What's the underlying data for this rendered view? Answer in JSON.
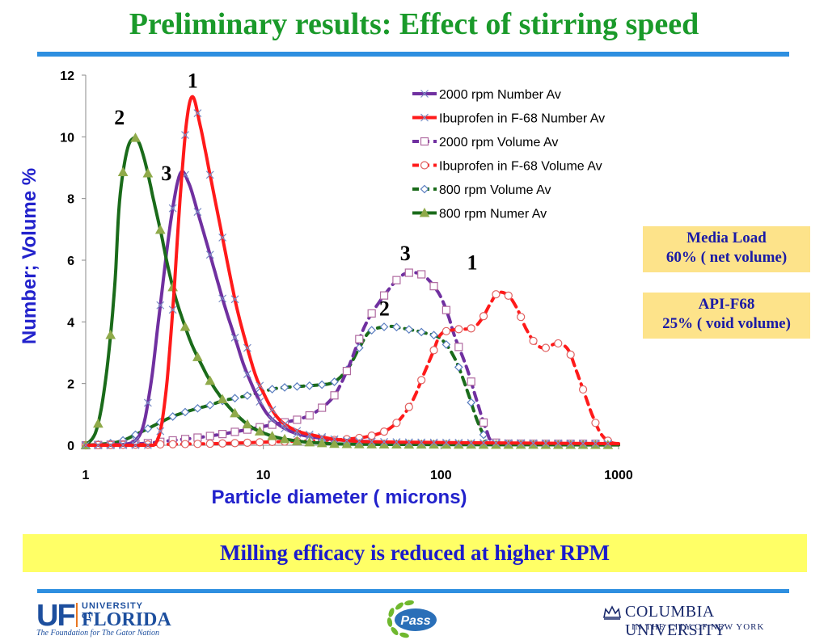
{
  "title": "Preliminary results: Effect of stirring speed",
  "colors": {
    "title": "#1a9a2a",
    "accent_rule": "#2e8fe0",
    "axis_label": "#2222cc",
    "box_fill": "#fde38a",
    "box_text": "#1a1aa6",
    "banner_fill": "#ffff66",
    "banner_text": "#1a1acc"
  },
  "chart_data": {
    "type": "line",
    "xlabel": "Particle diameter ( microns)",
    "ylabel": "Number; Volume %",
    "x_scale": "log",
    "xlim": [
      1,
      1000
    ],
    "ylim": [
      0,
      12
    ],
    "x_ticks": [
      1,
      10,
      100,
      1000
    ],
    "x_tick_labels": [
      "1",
      "10",
      "100",
      "1000"
    ],
    "y_ticks": [
      0,
      2,
      4,
      6,
      8,
      10,
      12
    ],
    "y_tick_labels": [
      "0",
      "2",
      "4",
      "6",
      "8",
      "10",
      "12"
    ],
    "legend_position": "top-right",
    "series": [
      {
        "name": "2000 rpm Number Av",
        "color": "#7030a0",
        "marker": "x",
        "dash": "solid",
        "points": [
          [
            1,
            0
          ],
          [
            1.5,
            0
          ],
          [
            2,
            0.3
          ],
          [
            2.3,
            1.8
          ],
          [
            2.6,
            4.3
          ],
          [
            3,
            7.2
          ],
          [
            3.4,
            8.8
          ],
          [
            3.8,
            8.5
          ],
          [
            4.3,
            7.5
          ],
          [
            5,
            6.2
          ],
          [
            6,
            4.6
          ],
          [
            7,
            3.4
          ],
          [
            8,
            2.4
          ],
          [
            10,
            1.2
          ],
          [
            12,
            0.7
          ],
          [
            15,
            0.4
          ],
          [
            20,
            0.25
          ],
          [
            30,
            0.15
          ],
          [
            50,
            0.1
          ],
          [
            100,
            0.05
          ],
          [
            1000,
            0.02
          ]
        ]
      },
      {
        "name": "Ibuprofen in F-68 Number Av",
        "color": "#ff1a1a",
        "marker": "x",
        "dash": "solid",
        "points": [
          [
            1,
            0
          ],
          [
            2,
            0
          ],
          [
            2.5,
            0.1
          ],
          [
            2.8,
            1.5
          ],
          [
            3.1,
            4.5
          ],
          [
            3.4,
            8
          ],
          [
            3.7,
            10.5
          ],
          [
            4,
            11.3
          ],
          [
            4.4,
            10.4
          ],
          [
            5,
            8.8
          ],
          [
            6,
            6.5
          ],
          [
            7,
            4.6
          ],
          [
            8,
            3.3
          ],
          [
            9,
            2.3
          ],
          [
            10,
            1.7
          ],
          [
            12,
            0.9
          ],
          [
            15,
            0.5
          ],
          [
            20,
            0.3
          ],
          [
            30,
            0.15
          ],
          [
            60,
            0.1
          ],
          [
            1000,
            0.05
          ]
        ]
      },
      {
        "name": "2000 rpm Volume Av",
        "color": "#7030a0",
        "marker": "square",
        "dash": "dash",
        "points": [
          [
            1,
            0
          ],
          [
            2,
            0.05
          ],
          [
            3,
            0.15
          ],
          [
            5,
            0.3
          ],
          [
            8,
            0.5
          ],
          [
            12,
            0.7
          ],
          [
            16,
            0.85
          ],
          [
            20,
            1.1
          ],
          [
            25,
            1.6
          ],
          [
            30,
            2.5
          ],
          [
            35,
            3.5
          ],
          [
            40,
            4.2
          ],
          [
            50,
            5.0
          ],
          [
            60,
            5.5
          ],
          [
            70,
            5.6
          ],
          [
            80,
            5.5
          ],
          [
            90,
            5.2
          ],
          [
            100,
            4.8
          ],
          [
            110,
            4.2
          ],
          [
            120,
            3.5
          ],
          [
            140,
            2.5
          ],
          [
            160,
            1.4
          ],
          [
            180,
            0.5
          ],
          [
            200,
            0.1
          ],
          [
            300,
            0.05
          ],
          [
            1000,
            0.05
          ]
        ]
      },
      {
        "name": "Ibuprofen in F-68 Volume Av",
        "color": "#ff1a1a",
        "marker": "circle",
        "dash": "dash",
        "points": [
          [
            1,
            0
          ],
          [
            5,
            0.05
          ],
          [
            10,
            0.1
          ],
          [
            20,
            0.15
          ],
          [
            30,
            0.2
          ],
          [
            40,
            0.3
          ],
          [
            50,
            0.5
          ],
          [
            60,
            0.9
          ],
          [
            70,
            1.5
          ],
          [
            80,
            2.3
          ],
          [
            90,
            3.0
          ],
          [
            100,
            3.6
          ],
          [
            120,
            3.75
          ],
          [
            150,
            3.8
          ],
          [
            170,
            4.1
          ],
          [
            190,
            4.6
          ],
          [
            210,
            4.95
          ],
          [
            240,
            4.85
          ],
          [
            270,
            4.4
          ],
          [
            300,
            3.8
          ],
          [
            340,
            3.3
          ],
          [
            380,
            3.15
          ],
          [
            420,
            3.25
          ],
          [
            460,
            3.3
          ],
          [
            520,
            3.1
          ],
          [
            580,
            2.4
          ],
          [
            650,
            1.6
          ],
          [
            720,
            0.9
          ],
          [
            800,
            0.35
          ],
          [
            900,
            0.1
          ],
          [
            1000,
            0.05
          ]
        ]
      },
      {
        "name": "800 rpm Volume Av",
        "color": "#1a6b1a",
        "marker": "diamond",
        "dash": "dash",
        "points": [
          [
            1,
            0
          ],
          [
            1.5,
            0.1
          ],
          [
            2,
            0.4
          ],
          [
            3,
            0.9
          ],
          [
            4,
            1.15
          ],
          [
            5,
            1.3
          ],
          [
            6,
            1.45
          ],
          [
            8,
            1.6
          ],
          [
            10,
            1.75
          ],
          [
            12,
            1.85
          ],
          [
            15,
            1.9
          ],
          [
            20,
            1.95
          ],
          [
            25,
            2.05
          ],
          [
            30,
            2.5
          ],
          [
            35,
            3.2
          ],
          [
            40,
            3.7
          ],
          [
            50,
            3.85
          ],
          [
            60,
            3.8
          ],
          [
            80,
            3.65
          ],
          [
            100,
            3.45
          ],
          [
            120,
            2.8
          ],
          [
            140,
            1.8
          ],
          [
            160,
            0.8
          ],
          [
            180,
            0.2
          ],
          [
            200,
            0.05
          ],
          [
            1000,
            0.02
          ]
        ]
      },
      {
        "name": "800 rpm Numer Av",
        "color": "#1a6b1a",
        "marker": "triangle",
        "dash": "solid",
        "points": [
          [
            1,
            0
          ],
          [
            1.15,
            0.5
          ],
          [
            1.3,
            2.2
          ],
          [
            1.45,
            5
          ],
          [
            1.55,
            7.9
          ],
          [
            1.7,
            9.5
          ],
          [
            1.85,
            9.95
          ],
          [
            2,
            9.8
          ],
          [
            2.2,
            9
          ],
          [
            2.4,
            8
          ],
          [
            2.65,
            6.9
          ],
          [
            2.9,
            5.8
          ],
          [
            3.2,
            4.8
          ],
          [
            3.6,
            3.9
          ],
          [
            4,
            3.2
          ],
          [
            4.5,
            2.6
          ],
          [
            5,
            2.1
          ],
          [
            5.7,
            1.6
          ],
          [
            6.5,
            1.2
          ],
          [
            7.5,
            0.85
          ],
          [
            8.5,
            0.6
          ],
          [
            10,
            0.4
          ],
          [
            12,
            0.25
          ],
          [
            15,
            0.15
          ],
          [
            20,
            0.08
          ],
          [
            40,
            0.03
          ],
          [
            1000,
            0.01
          ]
        ]
      }
    ],
    "annotations": [
      {
        "text": "1",
        "x": 4.0,
        "y": 11.6
      },
      {
        "text": "2",
        "x": 1.55,
        "y": 10.4
      },
      {
        "text": "3",
        "x": 2.85,
        "y": 8.6
      },
      {
        "text": "3",
        "x": 63,
        "y": 6.0
      },
      {
        "text": "2",
        "x": 48,
        "y": 4.2
      },
      {
        "text": "1",
        "x": 150,
        "y": 5.7
      }
    ]
  },
  "info_boxes": [
    {
      "line1": "Media Load",
      "line2": "60% ( net volume)"
    },
    {
      "line1": "API-F68",
      "line2": "25% ( void volume)"
    }
  ],
  "banner": "Milling efficacy is reduced at higher RPM",
  "footer": {
    "uf_mark": "UF",
    "uf_university": "UNIVERSITY of",
    "uf_florida": "FLORIDA",
    "uf_tagline": "The Foundation for The Gator Nation",
    "pass_label": "Pass",
    "columbia_name": "COLUMBIA UNIVERSITY",
    "columbia_sub": "IN THE CITY OF NEW YORK"
  }
}
